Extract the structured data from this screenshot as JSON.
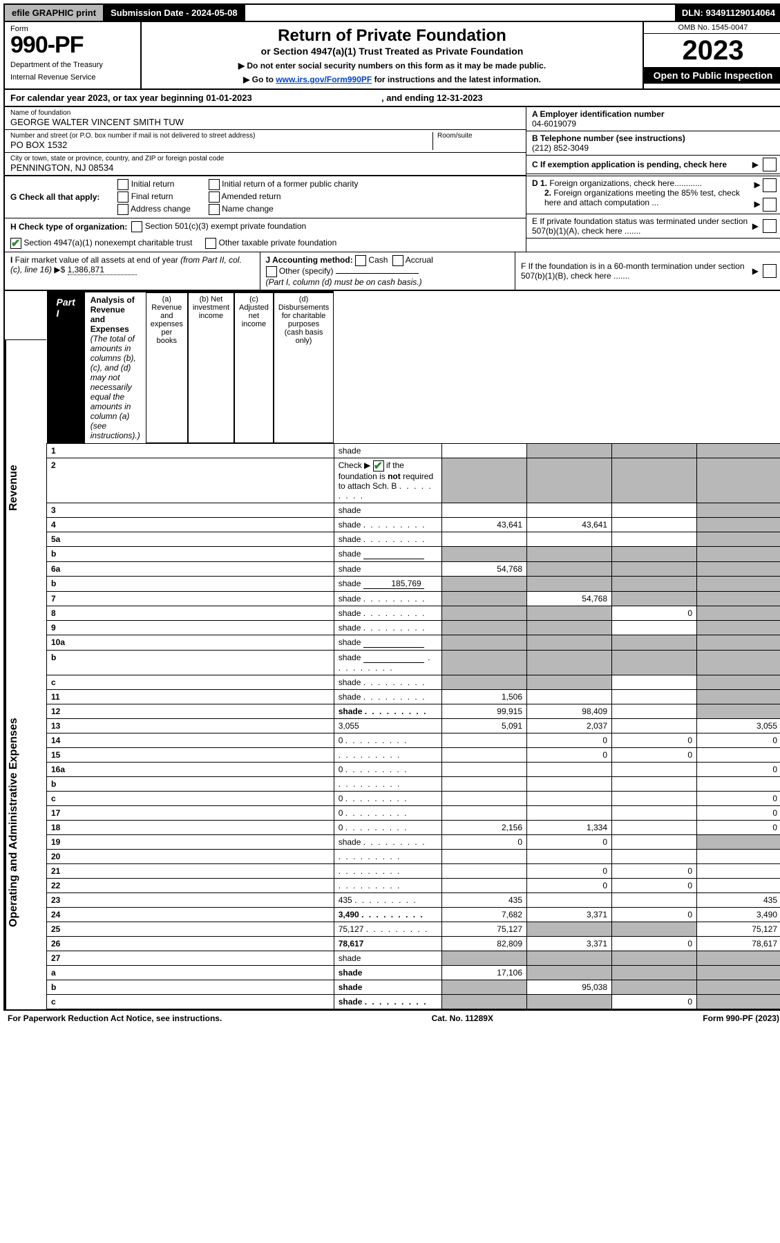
{
  "topbar": {
    "efile": "efile GRAPHIC print",
    "sub_label": "Submission Date - 2024-05-08",
    "dln": "DLN: 93491129014064"
  },
  "header": {
    "form_label": "Form",
    "form_no": "990-PF",
    "dept1": "Department of the Treasury",
    "dept2": "Internal Revenue Service",
    "title": "Return of Private Foundation",
    "subtitle": "or Section 4947(a)(1) Trust Treated as Private Foundation",
    "note1": "▶ Do not enter social security numbers on this form as it may be made public.",
    "note2_pre": "▶ Go to ",
    "note2_link": "www.irs.gov/Form990PF",
    "note2_post": " for instructions and the latest information.",
    "omb": "OMB No. 1545-0047",
    "year": "2023",
    "open": "Open to Public Inspection"
  },
  "cy": {
    "text_a": "For calendar year 2023, or tax year beginning ",
    "begin": "01-01-2023",
    "mid": " , and ending ",
    "end": "12-31-2023"
  },
  "info": {
    "name_label": "Name of foundation",
    "name": "GEORGE WALTER VINCENT SMITH TUW",
    "addr_label": "Number and street (or P.O. box number if mail is not delivered to street address)",
    "room_label": "Room/suite",
    "addr": "PO BOX 1532",
    "city_label": "City or town, state or province, country, and ZIP or foreign postal code",
    "city": "PENNINGTON, NJ  08534",
    "a_label": "A Employer identification number",
    "a_val": "04-6019079",
    "b_label": "B Telephone number (see instructions)",
    "b_val": "(212) 852-3049",
    "c_label": "C If exemption application is pending, check here",
    "d1": "D 1. Foreign organizations, check here............",
    "d2": "2. Foreign organizations meeting the 85% test, check here and attach computation ...",
    "e": "E  If private foundation status was terminated under section 507(b)(1)(A), check here .......",
    "f": "F  If the foundation is in a 60-month termination under section 507(b)(1)(B), check here .......",
    "g_label": "G Check all that apply:",
    "g_opts": [
      "Initial return",
      "Final return",
      "Address change",
      "Initial return of a former public charity",
      "Amended return",
      "Name change"
    ],
    "h_label": "H Check type of organization:",
    "h1": "Section 501(c)(3) exempt private foundation",
    "h2": "Section 4947(a)(1) nonexempt charitable trust",
    "h3": "Other taxable private foundation",
    "i_label": "I Fair market value of all assets at end of year (from Part II, col. (c), line 16) ▶$",
    "i_val": "1,386,871",
    "j_label": "J Accounting method:",
    "j_cash": "Cash",
    "j_accrual": "Accrual",
    "j_other": "Other (specify)",
    "j_note": "(Part I, column (d) must be on cash basis.)"
  },
  "part1_header": {
    "label": "Part I",
    "title": "Analysis of Revenue and Expenses",
    "note": " (The total of amounts in columns (b), (c), and (d) may not necessarily equal the amounts in column (a) (see instructions).)",
    "col_a": "(a) Revenue and expenses per books",
    "col_b": "(b) Net investment income",
    "col_c": "(c) Adjusted net income",
    "col_d": "(d) Disbursements for charitable purposes (cash basis only)"
  },
  "vert": {
    "revenue": "Revenue",
    "expenses": "Operating and Administrative Expenses"
  },
  "rows": [
    {
      "n": "1",
      "d": "shade",
      "a": "",
      "b": "shade",
      "c": "shade"
    },
    {
      "n": "2",
      "d": "shade",
      "a": "shade",
      "b": "shade",
      "c": "shade",
      "checked": true,
      "dots": true
    },
    {
      "n": "3",
      "d": "shade",
      "a": "",
      "b": "",
      "c": ""
    },
    {
      "n": "4",
      "d": "shade",
      "a": "43,641",
      "b": "43,641",
      "c": "",
      "dots": true
    },
    {
      "n": "5a",
      "d": "shade",
      "a": "",
      "b": "",
      "c": "",
      "dots": true
    },
    {
      "n": "b",
      "d": "shade",
      "a": "shade",
      "b": "shade",
      "c": "shade",
      "inline_field": true
    },
    {
      "n": "6a",
      "d": "shade",
      "a": "54,768",
      "b": "shade",
      "c": "shade"
    },
    {
      "n": "b",
      "d": "shade",
      "a": "shade",
      "b": "shade",
      "c": "shade",
      "inline_val": "185,769"
    },
    {
      "n": "7",
      "d": "shade",
      "a": "shade",
      "b": "54,768",
      "c": "shade",
      "dots": true
    },
    {
      "n": "8",
      "d": "shade",
      "a": "shade",
      "b": "shade",
      "c": "0",
      "dots": true
    },
    {
      "n": "9",
      "d": "shade",
      "a": "shade",
      "b": "shade",
      "c": "",
      "dots": true
    },
    {
      "n": "10a",
      "d": "shade",
      "a": "shade",
      "b": "shade",
      "c": "shade",
      "inline_field": true
    },
    {
      "n": "b",
      "d": "shade",
      "a": "shade",
      "b": "shade",
      "c": "shade",
      "inline_field": true,
      "dots": true
    },
    {
      "n": "c",
      "d": "shade",
      "a": "shade",
      "b": "shade",
      "c": "",
      "dots": true
    },
    {
      "n": "11",
      "d": "shade",
      "a": "1,506",
      "b": "",
      "c": "",
      "dots": true
    },
    {
      "n": "12",
      "d": "shade",
      "a": "99,915",
      "b": "98,409",
      "c": "",
      "bold": true,
      "dots": true
    },
    {
      "n": "13",
      "d": "3,055",
      "a": "5,091",
      "b": "2,037",
      "c": ""
    },
    {
      "n": "14",
      "d": "0",
      "a": "",
      "b": "0",
      "c": "0",
      "dots": true
    },
    {
      "n": "15",
      "d": "",
      "a": "",
      "b": "0",
      "c": "0",
      "dots": true
    },
    {
      "n": "16a",
      "d": "0",
      "a": "",
      "b": "",
      "c": "",
      "dots": true
    },
    {
      "n": "b",
      "d": "",
      "a": "",
      "b": "",
      "c": "",
      "dots": true
    },
    {
      "n": "c",
      "d": "0",
      "a": "",
      "b": "",
      "c": "",
      "dots": true
    },
    {
      "n": "17",
      "d": "0",
      "a": "",
      "b": "",
      "c": "",
      "dots": true
    },
    {
      "n": "18",
      "d": "0",
      "a": "2,156",
      "b": "1,334",
      "c": "",
      "dots": true
    },
    {
      "n": "19",
      "d": "shade",
      "a": "0",
      "b": "0",
      "c": "",
      "dots": true
    },
    {
      "n": "20",
      "d": "",
      "a": "",
      "b": "",
      "c": "",
      "dots": true
    },
    {
      "n": "21",
      "d": "",
      "a": "",
      "b": "0",
      "c": "0",
      "dots": true
    },
    {
      "n": "22",
      "d": "",
      "a": "",
      "b": "0",
      "c": "0",
      "dots": true
    },
    {
      "n": "23",
      "d": "435",
      "a": "435",
      "b": "",
      "c": "",
      "dots": true
    },
    {
      "n": "24",
      "d": "3,490",
      "a": "7,682",
      "b": "3,371",
      "c": "0",
      "bold": true,
      "dots": true
    },
    {
      "n": "25",
      "d": "75,127",
      "a": "75,127",
      "b": "shade",
      "c": "shade",
      "dots": true
    },
    {
      "n": "26",
      "d": "78,617",
      "a": "82,809",
      "b": "3,371",
      "c": "0",
      "bold": true
    },
    {
      "n": "27",
      "d": "shade",
      "a": "shade",
      "b": "shade",
      "c": "shade"
    },
    {
      "n": "a",
      "d": "shade",
      "a": "17,106",
      "b": "shade",
      "c": "shade",
      "bold": true
    },
    {
      "n": "b",
      "d": "shade",
      "a": "shade",
      "b": "95,038",
      "c": "shade",
      "bold": true
    },
    {
      "n": "c",
      "d": "shade",
      "a": "shade",
      "b": "shade",
      "c": "0",
      "bold": true,
      "dots": true
    }
  ],
  "footer": {
    "left": "For Paperwork Reduction Act Notice, see instructions.",
    "mid": "Cat. No. 11289X",
    "right": "Form 990-PF (2023)"
  },
  "colors": {
    "shade": "#b8b8b8",
    "link": "#0044cc",
    "check": "#2a8a2a"
  },
  "revenue_end_row": 15
}
